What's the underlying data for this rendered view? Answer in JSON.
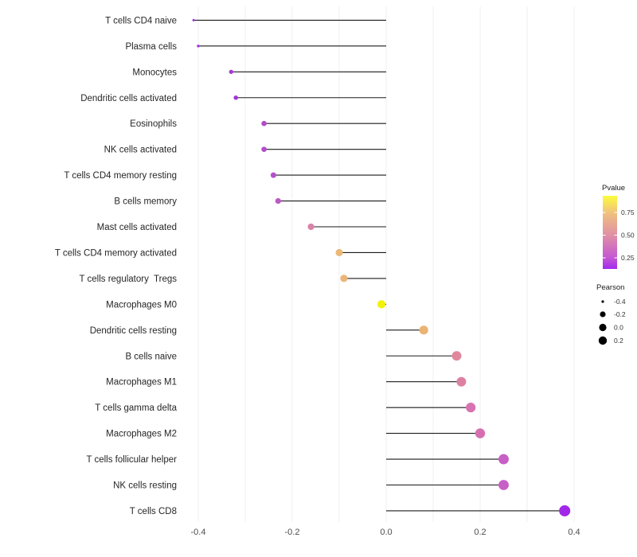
{
  "chart_data": {
    "type": "scatter",
    "subtype": "lollipop",
    "orientation": "horizontal",
    "title": "",
    "xlabel": "",
    "ylabel": "",
    "xlim": [
      -0.45,
      0.47
    ],
    "grid_on": true,
    "gridline_step": 0.1,
    "background_color": "#FFFFFF",
    "gridline_color": "#EFEFEF",
    "stem_color": "#1A1A1A",
    "axis_text_color": "#4D4D4D",
    "label_text_color": "#262626",
    "x_ticks": [
      {
        "value": -0.4,
        "label": "-0.4"
      },
      {
        "value": -0.2,
        "label": "-0.2"
      },
      {
        "value": 0.0,
        "label": "0.0"
      },
      {
        "value": 0.2,
        "label": "0.2"
      },
      {
        "value": 0.4,
        "label": "0.4"
      }
    ],
    "points": [
      {
        "label": "T cells CD4 naive",
        "pearson": -0.41,
        "pvalue_est": 0.1,
        "color": "#9E30DB"
      },
      {
        "label": "Plasma cells",
        "pearson": -0.4,
        "pvalue_est": 0.1,
        "color": "#A233DC"
      },
      {
        "label": "Monocytes",
        "pearson": -0.33,
        "pvalue_est": 0.12,
        "color": "#A73AD7"
      },
      {
        "label": "Dendritic cells activated",
        "pearson": -0.32,
        "pvalue_est": 0.11,
        "color": "#A136D9"
      },
      {
        "label": "Eosinophils",
        "pearson": -0.26,
        "pvalue_est": 0.2,
        "color": "#B34CC9"
      },
      {
        "label": "NK cells activated",
        "pearson": -0.26,
        "pvalue_est": 0.2,
        "color": "#B34DC9"
      },
      {
        "label": "T cells CD4 memory resting",
        "pearson": -0.24,
        "pvalue_est": 0.22,
        "color": "#B550CB"
      },
      {
        "label": "B cells memory",
        "pearson": -0.23,
        "pvalue_est": 0.25,
        "color": "#BC59C4"
      },
      {
        "label": "Mast cells activated",
        "pearson": -0.16,
        "pvalue_est": 0.45,
        "color": "#D983A8"
      },
      {
        "label": "T cells CD4 memory activated",
        "pearson": -0.1,
        "pvalue_est": 0.65,
        "color": "#EBB878"
      },
      {
        "label": "T cells regulatory  Tregs",
        "pearson": -0.09,
        "pvalue_est": 0.65,
        "color": "#EBB677"
      },
      {
        "label": "Macrophages M0",
        "pearson": -0.01,
        "pvalue_est": 0.93,
        "color": "#F2F203"
      },
      {
        "label": "Dendritic cells resting",
        "pearson": 0.08,
        "pvalue_est": 0.65,
        "color": "#EBB374"
      },
      {
        "label": "B cells naive",
        "pearson": 0.15,
        "pvalue_est": 0.48,
        "color": "#E1879B"
      },
      {
        "label": "Macrophages M1",
        "pearson": 0.16,
        "pvalue_est": 0.45,
        "color": "#DD81A2"
      },
      {
        "label": "T cells gamma delta",
        "pearson": 0.18,
        "pvalue_est": 0.38,
        "color": "#D873B2"
      },
      {
        "label": "Macrophages M2",
        "pearson": 0.2,
        "pvalue_est": 0.36,
        "color": "#D66FB1"
      },
      {
        "label": "T cells follicular helper",
        "pearson": 0.25,
        "pvalue_est": 0.28,
        "color": "#C75FC6"
      },
      {
        "label": "NK cells resting",
        "pearson": 0.25,
        "pvalue_est": 0.28,
        "color": "#C75FC6"
      },
      {
        "label": "T cells CD8",
        "pearson": 0.38,
        "pvalue_est": 0.09,
        "color": "#A228E8"
      }
    ],
    "legends": {
      "pvalue": {
        "title": "Pvalue",
        "tick_labels": [
          "0.75",
          "0.50",
          "0.25"
        ],
        "gradient_top_to_bottom": [
          {
            "offset": 0.0,
            "color": "#FCFC3A"
          },
          {
            "offset": 0.23,
            "color": "#F0C27E"
          },
          {
            "offset": 0.54,
            "color": "#E08FA5"
          },
          {
            "offset": 0.85,
            "color": "#C357D4"
          },
          {
            "offset": 1.0,
            "color": "#A228EC"
          }
        ]
      },
      "pearson": {
        "title": "Pearson",
        "entries": [
          {
            "label": "-0.4",
            "radius": 1.6
          },
          {
            "label": "-0.2",
            "radius": 3.6
          },
          {
            "label": "0.0",
            "radius": 4.6
          },
          {
            "label": "0.2",
            "radius": 5.2
          }
        ],
        "dot_color": "#000000"
      }
    }
  }
}
